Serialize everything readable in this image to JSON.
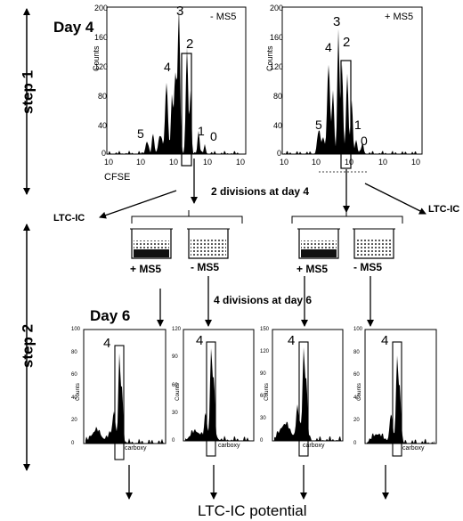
{
  "step1_label": "step 1",
  "step2_label": "step 2",
  "day4": {
    "title": "Day 4",
    "left_panel": {
      "condition": "- MS5",
      "y_label": "Counts",
      "y_ticks": [
        "200",
        "160",
        "120",
        "80",
        "40",
        "0"
      ],
      "x_ticks": [
        "10",
        "10",
        "10",
        "10",
        "10"
      ],
      "x_label": "CFSE",
      "peaks": [
        "5",
        "4",
        "3",
        "2",
        "1",
        "0"
      ]
    },
    "right_panel": {
      "condition": "+ MS5",
      "y_label": "Counts",
      "y_ticks": [
        "200",
        "160",
        "120",
        "80",
        "40",
        "0"
      ],
      "x_ticks": [
        "10",
        "10",
        "10",
        "10",
        "10"
      ],
      "peaks": [
        "5",
        "4",
        "3",
        "2",
        "1",
        "0"
      ]
    }
  },
  "flow": {
    "divisions_day4": "2 divisions at day 4",
    "ltcic_left": "LTC-IC",
    "ltcic_right": "LTC-IC",
    "wells": [
      "+ MS5",
      "- MS5",
      "+ MS5",
      "- MS5"
    ],
    "divisions_day6": "4 divisions at day 6"
  },
  "day6": {
    "title": "Day 6",
    "panels": [
      {
        "peak": "4",
        "y_label": "Counts",
        "y_ticks": [
          "100",
          "80",
          "60",
          "40",
          "20",
          "0"
        ],
        "x_label": "carboxy"
      },
      {
        "peak": "4",
        "y_label": "Counts",
        "y_ticks": [
          "120",
          "90",
          "60",
          "30",
          "0"
        ],
        "x_label": "carboxy"
      },
      {
        "peak": "4",
        "y_label": "Counts",
        "y_ticks": [
          "150",
          "120",
          "90",
          "60",
          "30",
          "0"
        ],
        "x_label": "carboxy"
      },
      {
        "peak": "4",
        "y_label": "Counts",
        "y_ticks": [
          "100",
          "80",
          "60",
          "40",
          "20",
          "0"
        ],
        "x_label": "carboxy"
      }
    ]
  },
  "footer": "LTC-IC potential"
}
